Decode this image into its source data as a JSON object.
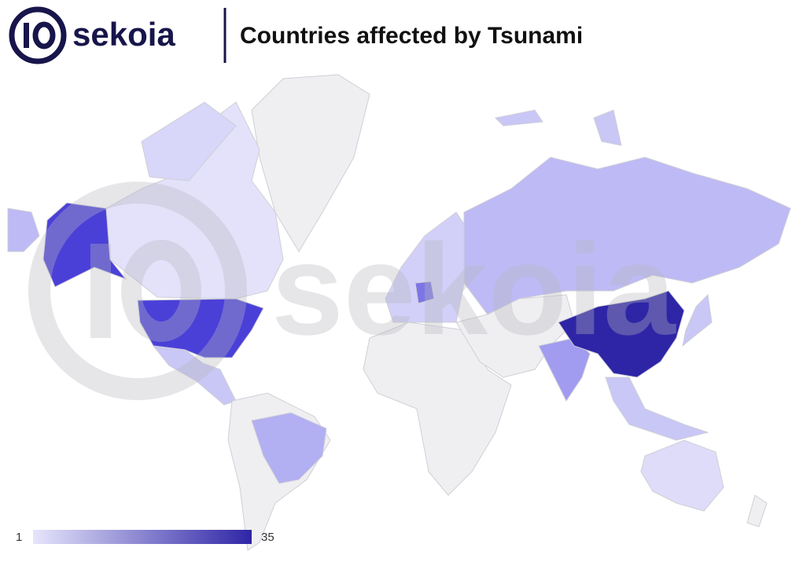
{
  "header": {
    "logo": "sekoia",
    "title": "Countries affected by Tsunami"
  },
  "watermark": "sekoia",
  "legend": {
    "min": 1,
    "max": 35,
    "colors": [
      "#e6e5fb",
      "#2e25a6"
    ]
  }
}
